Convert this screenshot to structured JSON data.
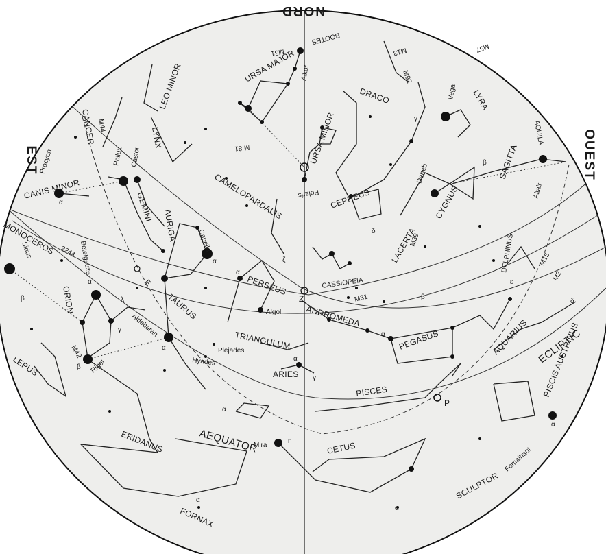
{
  "cardinals": {
    "north": "NORD",
    "east": "EST",
    "west": "OUEST"
  },
  "circles": {
    "equator": "AEQUATOR",
    "ecliptic": "ECLIPTIC",
    "vernal_point": "P",
    "zenith": "Z",
    "equinox_e": "E"
  },
  "constellations": {
    "ursa_major": "URSA MAJOR",
    "ursa_minor": "URSA MINOR",
    "bootes": "BOOTES",
    "leo_minor": "LEO MINOR",
    "draco": "DRACO",
    "lyra": "LYRA",
    "cancer": "CANCER",
    "lynx": "LYNX",
    "camelopardalis": "CAMELOPARDALIS",
    "cepheus": "CEPHEUS",
    "cygnus": "CYGNUS",
    "lacerta": "LACERTA",
    "sagitta": "SAGITTA",
    "aquila": "AQUILA",
    "canis_minor": "CANIS MINOR",
    "gemini": "GEMINI",
    "auriga": "AURIGA",
    "cassiopeia": "CASSIOPEIA",
    "perseus": "PERSEUS",
    "delphinus": "DELPHINUS",
    "monoceros": "MONOCEROS",
    "orion": "ORION",
    "taurus": "TAURUS",
    "andromeda": "ANDROMEDA",
    "triangulum": "TRIANGULUM",
    "pegasus": "PEGASUS",
    "aries": "ARIES",
    "pisces": "PISCES",
    "aquarius": "AQUARIUS",
    "piscis_austrinus": "PISCIS AUSTRINUS",
    "lepus": "LEPUS",
    "eridanus": "ERIDANUS",
    "cetus": "CETUS",
    "sculptor": "SCULPTOR",
    "fornax": "FORNAX"
  },
  "stars": {
    "polaris": "Polaris",
    "vega": "Vega",
    "deneb": "Deneb",
    "altair": "Altair",
    "procyon": "Procyon",
    "pollux": "Pollux",
    "castor": "Castor",
    "capella": "Capella",
    "betelgeuze": "Betelgeuze",
    "sirius": "Sirius",
    "rigel": "Rigel",
    "aldebaran": "Aldebaran",
    "algol": "Algol",
    "mira": "Mira",
    "fomalhaut": "Fomalhaut",
    "alkor": "Alkor",
    "plejades": "Plejades",
    "hyades": "Hyades"
  },
  "objects": {
    "m31": "M31",
    "m42": "M42",
    "m44": "M44",
    "m57": "M57",
    "m92": "M92",
    "m13": "M13",
    "m81": "M 81",
    "m39": "M39",
    "m2": "M2",
    "m15": "M15",
    "ngc2244": "2244",
    "m51": "M51"
  },
  "greek": {
    "alpha": "α",
    "beta": "β",
    "gamma": "γ",
    "delta": "δ",
    "epsilon": "ε",
    "zeta": "ζ",
    "lambda": "λ",
    "eta": "η"
  },
  "colors": {
    "sky": "#eeeeec",
    "ink": "#1a1a1a",
    "outside": "#ffffff"
  }
}
